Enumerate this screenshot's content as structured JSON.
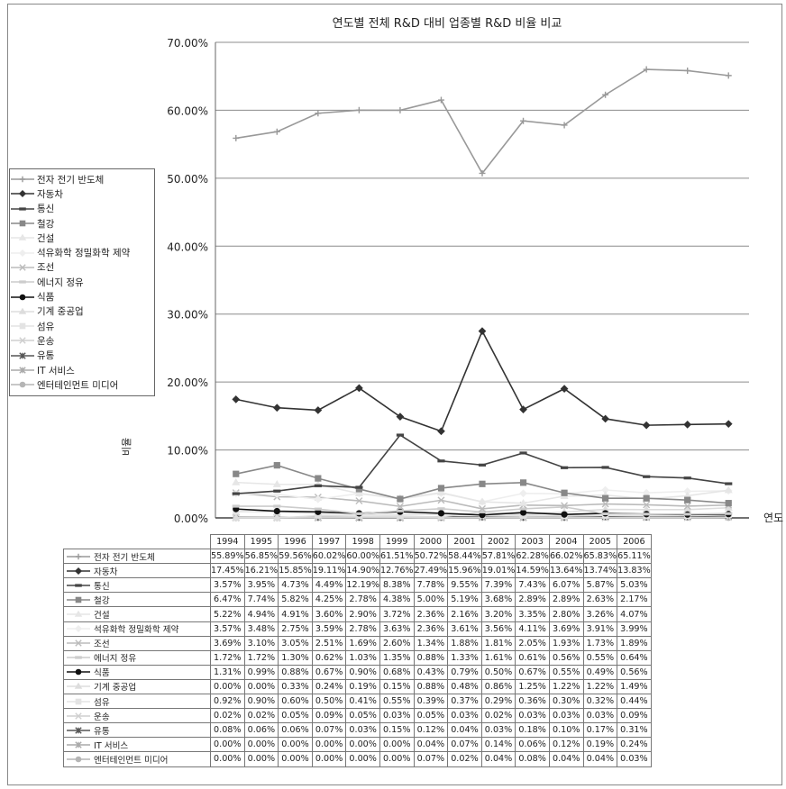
{
  "chart_data": {
    "type": "line",
    "title": "연도별 전체 R&D 대비 업종별 R&D 비율 비교",
    "xlabel": "연도",
    "ylabel": "비율",
    "ylim": [
      0,
      70
    ],
    "ytick_labels": [
      "0.00%",
      "10.00%",
      "20.00%",
      "30.00%",
      "40.00%",
      "50.00%",
      "60.00%",
      "70.00%"
    ],
    "grid": true,
    "legend_position": "left",
    "categories": [
      "1994",
      "1995",
      "1996",
      "1997",
      "1998",
      "1999",
      "2000",
      "2001",
      "2002",
      "2003",
      "2004",
      "2005",
      "2006"
    ],
    "series": [
      {
        "name": "전자 전기 반도체",
        "color": "#999999",
        "marker": "plus",
        "values": [
          55.89,
          56.85,
          59.56,
          60.02,
          60.0,
          61.51,
          50.72,
          58.44,
          57.81,
          62.28,
          66.02,
          65.83,
          65.11
        ],
        "labels": [
          "55.89%",
          "56.85%",
          "59.56%",
          "60.02%",
          "60.00%",
          "61.51%",
          "50.72%",
          "58.44%",
          "57.81%",
          "62.28%",
          "66.02%",
          "65.83%",
          "65.11%"
        ]
      },
      {
        "name": "자동차",
        "color": "#333333",
        "marker": "diamond",
        "values": [
          17.45,
          16.21,
          15.85,
          19.11,
          14.9,
          12.76,
          27.49,
          15.96,
          19.01,
          14.59,
          13.64,
          13.74,
          13.83
        ],
        "labels": [
          "17.45%",
          "16.21%",
          "15.85%",
          "19.11%",
          "14.90%",
          "12.76%",
          "27.49%",
          "15.96%",
          "19.01%",
          "14.59%",
          "13.64%",
          "13.74%",
          "13.83%"
        ]
      },
      {
        "name": "통신",
        "color": "#444444",
        "marker": "dash",
        "values": [
          3.57,
          3.95,
          4.73,
          4.49,
          12.19,
          8.38,
          7.78,
          9.55,
          7.39,
          7.43,
          6.07,
          5.87,
          5.03
        ],
        "labels": [
          "3.57%",
          "3.95%",
          "4.73%",
          "4.49%",
          "12.19%",
          "8.38%",
          "7.78%",
          "9.55%",
          "7.39%",
          "7.43%",
          "6.07%",
          "5.87%",
          "5.03%"
        ]
      },
      {
        "name": "철강",
        "color": "#888888",
        "marker": "square",
        "values": [
          6.47,
          7.74,
          5.82,
          4.25,
          2.78,
          4.38,
          5.0,
          5.19,
          3.68,
          2.89,
          2.89,
          2.63,
          2.17
        ],
        "labels": [
          "6.47%",
          "7.74%",
          "5.82%",
          "4.25%",
          "2.78%",
          "4.38%",
          "5.00%",
          "5.19%",
          "3.68%",
          "2.89%",
          "2.89%",
          "2.63%",
          "2.17%"
        ]
      },
      {
        "name": "건설",
        "color": "#e6e6e6",
        "marker": "triangle",
        "values": [
          5.22,
          4.94,
          4.91,
          3.6,
          2.9,
          3.72,
          2.36,
          2.16,
          3.2,
          3.35,
          2.8,
          3.26,
          4.07
        ],
        "labels": [
          "5.22%",
          "4.94%",
          "4.91%",
          "3.60%",
          "2.90%",
          "3.72%",
          "2.36%",
          "2.16%",
          "3.20%",
          "3.35%",
          "2.80%",
          "3.26%",
          "4.07%"
        ]
      },
      {
        "name": "석유화학 정밀화학 제약",
        "color": "#eeeeee",
        "marker": "diamond",
        "values": [
          3.57,
          3.48,
          2.75,
          3.59,
          2.78,
          3.63,
          2.36,
          3.61,
          3.56,
          4.11,
          3.69,
          3.91,
          3.99
        ],
        "labels": [
          "3.57%",
          "3.48%",
          "2.75%",
          "3.59%",
          "2.78%",
          "3.63%",
          "2.36%",
          "3.61%",
          "3.56%",
          "4.11%",
          "3.69%",
          "3.91%",
          "3.99%"
        ]
      },
      {
        "name": "조선",
        "color": "#bbbbbb",
        "marker": "x",
        "values": [
          3.69,
          3.1,
          3.05,
          2.51,
          1.69,
          2.6,
          1.34,
          1.88,
          1.81,
          2.05,
          1.93,
          1.73,
          1.89
        ],
        "labels": [
          "3.69%",
          "3.10%",
          "3.05%",
          "2.51%",
          "1.69%",
          "2.60%",
          "1.34%",
          "1.88%",
          "1.81%",
          "2.05%",
          "1.93%",
          "1.73%",
          "1.89%"
        ]
      },
      {
        "name": "에너지 정유",
        "color": "#cccccc",
        "marker": "dash",
        "values": [
          1.72,
          1.72,
          1.3,
          0.62,
          1.03,
          1.35,
          0.88,
          1.33,
          1.61,
          0.61,
          0.56,
          0.55,
          0.64
        ],
        "labels": [
          "1.72%",
          "1.72%",
          "1.30%",
          "0.62%",
          "1.03%",
          "1.35%",
          "0.88%",
          "1.33%",
          "1.61%",
          "0.61%",
          "0.56%",
          "0.55%",
          "0.64%"
        ]
      },
      {
        "name": "식품",
        "color": "#111111",
        "marker": "circle",
        "values": [
          1.31,
          0.99,
          0.88,
          0.67,
          0.9,
          0.68,
          0.43,
          0.79,
          0.5,
          0.67,
          0.55,
          0.49,
          0.56
        ],
        "labels": [
          "1.31%",
          "0.99%",
          "0.88%",
          "0.67%",
          "0.90%",
          "0.68%",
          "0.43%",
          "0.79%",
          "0.50%",
          "0.67%",
          "0.55%",
          "0.49%",
          "0.56%"
        ]
      },
      {
        "name": "기계 중공업",
        "color": "#dddddd",
        "marker": "triangle",
        "values": [
          0.0,
          0.0,
          0.33,
          0.24,
          0.19,
          0.15,
          0.88,
          0.48,
          0.86,
          1.25,
          1.22,
          1.22,
          1.49
        ],
        "labels": [
          "0.00%",
          "0.00%",
          "0.33%",
          "0.24%",
          "0.19%",
          "0.15%",
          "0.88%",
          "0.48%",
          "0.86%",
          "1.25%",
          "1.22%",
          "1.22%",
          "1.49%"
        ]
      },
      {
        "name": "섬유",
        "color": "#e3e3e3",
        "marker": "square",
        "values": [
          0.92,
          0.9,
          0.6,
          0.5,
          0.41,
          0.55,
          0.39,
          0.37,
          0.29,
          0.36,
          0.3,
          0.32,
          0.44
        ],
        "labels": [
          "0.92%",
          "0.90%",
          "0.60%",
          "0.50%",
          "0.41%",
          "0.55%",
          "0.39%",
          "0.37%",
          "0.29%",
          "0.36%",
          "0.30%",
          "0.32%",
          "0.44%"
        ]
      },
      {
        "name": "운송",
        "color": "#cfcfcf",
        "marker": "x",
        "values": [
          0.02,
          0.02,
          0.05,
          0.09,
          0.05,
          0.03,
          0.05,
          0.03,
          0.02,
          0.03,
          0.03,
          0.03,
          0.09
        ],
        "labels": [
          "0.02%",
          "0.02%",
          "0.05%",
          "0.09%",
          "0.05%",
          "0.03%",
          "0.05%",
          "0.03%",
          "0.02%",
          "0.03%",
          "0.03%",
          "0.03%",
          "0.09%"
        ]
      },
      {
        "name": "유통",
        "color": "#555555",
        "marker": "star",
        "values": [
          0.08,
          0.06,
          0.06,
          0.07,
          0.03,
          0.15,
          0.12,
          0.04,
          0.03,
          0.18,
          0.1,
          0.17,
          0.31
        ],
        "labels": [
          "0.08%",
          "0.06%",
          "0.06%",
          "0.07%",
          "0.03%",
          "0.15%",
          "0.12%",
          "0.04%",
          "0.03%",
          "0.18%",
          "0.10%",
          "0.17%",
          "0.31%"
        ]
      },
      {
        "name": "IT 서비스",
        "color": "#aaaaaa",
        "marker": "star",
        "values": [
          0.0,
          0.0,
          0.0,
          0.0,
          0.0,
          0.0,
          0.04,
          0.07,
          0.14,
          0.06,
          0.12,
          0.19,
          0.24
        ],
        "labels": [
          "0.00%",
          "0.00%",
          "0.00%",
          "0.00%",
          "0.00%",
          "0.00%",
          "0.04%",
          "0.07%",
          "0.14%",
          "0.06%",
          "0.12%",
          "0.19%",
          "0.24%"
        ]
      },
      {
        "name": "엔터테인먼트 미디어",
        "color": "#b5b5b5",
        "marker": "circle",
        "values": [
          0.0,
          0.0,
          0.0,
          0.0,
          0.0,
          0.0,
          0.07,
          0.02,
          0.04,
          0.08,
          0.04,
          0.04,
          0.03
        ],
        "labels": [
          "0.00%",
          "0.00%",
          "0.00%",
          "0.00%",
          "0.00%",
          "0.00%",
          "0.07%",
          "0.02%",
          "0.04%",
          "0.08%",
          "0.04%",
          "0.04%",
          "0.03%"
        ]
      }
    ]
  }
}
